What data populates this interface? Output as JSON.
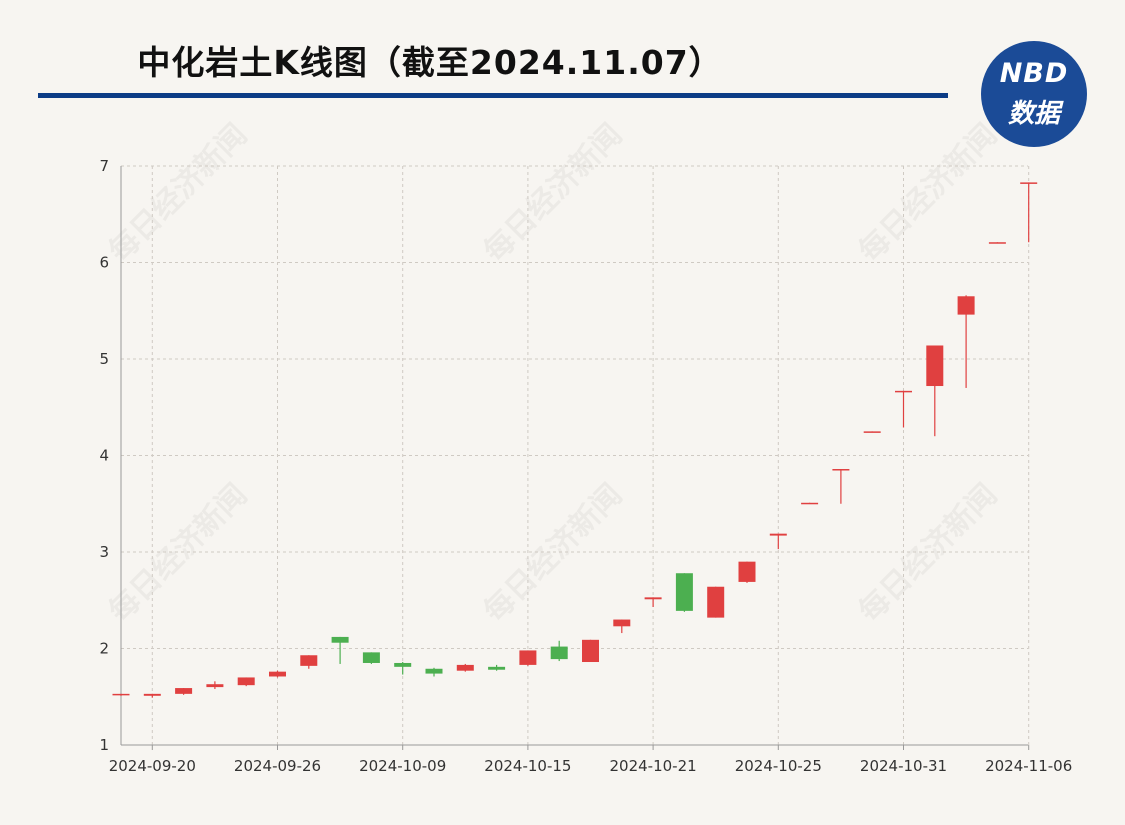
{
  "header": {
    "title": "中化岩土K线图（截至2024.11.07）"
  },
  "logo": {
    "top": "NBD",
    "bottom": "数据"
  },
  "watermark": "每日经济新闻",
  "colors": {
    "up": "#e04040",
    "down": "#4caf50",
    "title_rule": "#0c3c86",
    "grid": "#cfcac3",
    "axis": "#999999"
  },
  "chart_data": {
    "type": "candlestick",
    "title": "中化岩土K线图（截至2024.11.07）",
    "xlabel": "",
    "ylabel": "",
    "ylim": [
      1,
      7
    ],
    "yticks": [
      1,
      2,
      3,
      4,
      5,
      6,
      7
    ],
    "xticks": [
      "2024-09-20",
      "2024-09-26",
      "2024-10-09",
      "2024-10-15",
      "2024-10-21",
      "2024-10-25",
      "2024-10-31",
      "2024-11-06"
    ],
    "grid": true,
    "series": [
      {
        "date": "2024-09-19",
        "open": 1.52,
        "high": 1.53,
        "low": 1.51,
        "close": 1.53
      },
      {
        "date": "2024-09-20",
        "open": 1.51,
        "high": 1.53,
        "low": 1.49,
        "close": 1.53
      },
      {
        "date": "2024-09-23",
        "open": 1.53,
        "high": 1.59,
        "low": 1.52,
        "close": 1.59
      },
      {
        "date": "2024-09-24",
        "open": 1.6,
        "high": 1.66,
        "low": 1.58,
        "close": 1.63
      },
      {
        "date": "2024-09-25",
        "open": 1.62,
        "high": 1.7,
        "low": 1.61,
        "close": 1.7
      },
      {
        "date": "2024-09-26",
        "open": 1.71,
        "high": 1.77,
        "low": 1.7,
        "close": 1.76
      },
      {
        "date": "2024-09-27",
        "open": 1.82,
        "high": 1.93,
        "low": 1.79,
        "close": 1.93
      },
      {
        "date": "2024-09-30",
        "open": 2.12,
        "high": 2.12,
        "low": 1.84,
        "close": 2.06
      },
      {
        "date": "2024-10-08",
        "open": 1.96,
        "high": 1.96,
        "low": 1.84,
        "close": 1.85
      },
      {
        "date": "2024-10-09",
        "open": 1.85,
        "high": 1.86,
        "low": 1.73,
        "close": 1.81
      },
      {
        "date": "2024-10-10",
        "open": 1.79,
        "high": 1.8,
        "low": 1.71,
        "close": 1.74
      },
      {
        "date": "2024-10-11",
        "open": 1.77,
        "high": 1.84,
        "low": 1.76,
        "close": 1.83
      },
      {
        "date": "2024-10-14",
        "open": 1.81,
        "high": 1.83,
        "low": 1.77,
        "close": 1.78
      },
      {
        "date": "2024-10-15",
        "open": 1.83,
        "high": 1.98,
        "low": 1.82,
        "close": 1.98
      },
      {
        "date": "2024-10-16",
        "open": 2.02,
        "high": 2.08,
        "low": 1.87,
        "close": 1.89
      },
      {
        "date": "2024-10-17",
        "open": 1.86,
        "high": 2.09,
        "low": 1.86,
        "close": 2.09
      },
      {
        "date": "2024-10-18",
        "open": 2.23,
        "high": 2.3,
        "low": 2.16,
        "close": 2.3
      },
      {
        "date": "2024-10-21",
        "open": 2.51,
        "high": 2.53,
        "low": 2.43,
        "close": 2.53
      },
      {
        "date": "2024-10-22",
        "open": 2.78,
        "high": 2.78,
        "low": 2.38,
        "close": 2.39
      },
      {
        "date": "2024-10-23",
        "open": 2.32,
        "high": 2.64,
        "low": 2.32,
        "close": 2.64
      },
      {
        "date": "2024-10-24",
        "open": 2.69,
        "high": 2.9,
        "low": 2.68,
        "close": 2.9
      },
      {
        "date": "2024-10-25",
        "open": 3.17,
        "high": 3.19,
        "low": 3.03,
        "close": 3.19
      },
      {
        "date": "2024-10-28",
        "open": 3.51,
        "high": 3.51,
        "low": 3.5,
        "close": 3.51
      },
      {
        "date": "2024-10-29",
        "open": 3.85,
        "high": 3.86,
        "low": 3.5,
        "close": 3.86
      },
      {
        "date": "2024-10-30",
        "open": 4.24,
        "high": 4.25,
        "low": 4.24,
        "close": 4.25
      },
      {
        "date": "2024-10-31",
        "open": 4.66,
        "high": 4.67,
        "low": 4.29,
        "close": 4.67
      },
      {
        "date": "2024-11-01",
        "open": 4.72,
        "high": 5.14,
        "low": 4.2,
        "close": 5.14
      },
      {
        "date": "2024-11-04",
        "open": 5.46,
        "high": 5.66,
        "low": 4.7,
        "close": 5.65
      },
      {
        "date": "2024-11-05",
        "open": 6.2,
        "high": 6.21,
        "low": 6.2,
        "close": 6.21
      },
      {
        "date": "2024-11-06",
        "open": 6.82,
        "high": 6.83,
        "low": 6.21,
        "close": 6.83
      }
    ]
  }
}
